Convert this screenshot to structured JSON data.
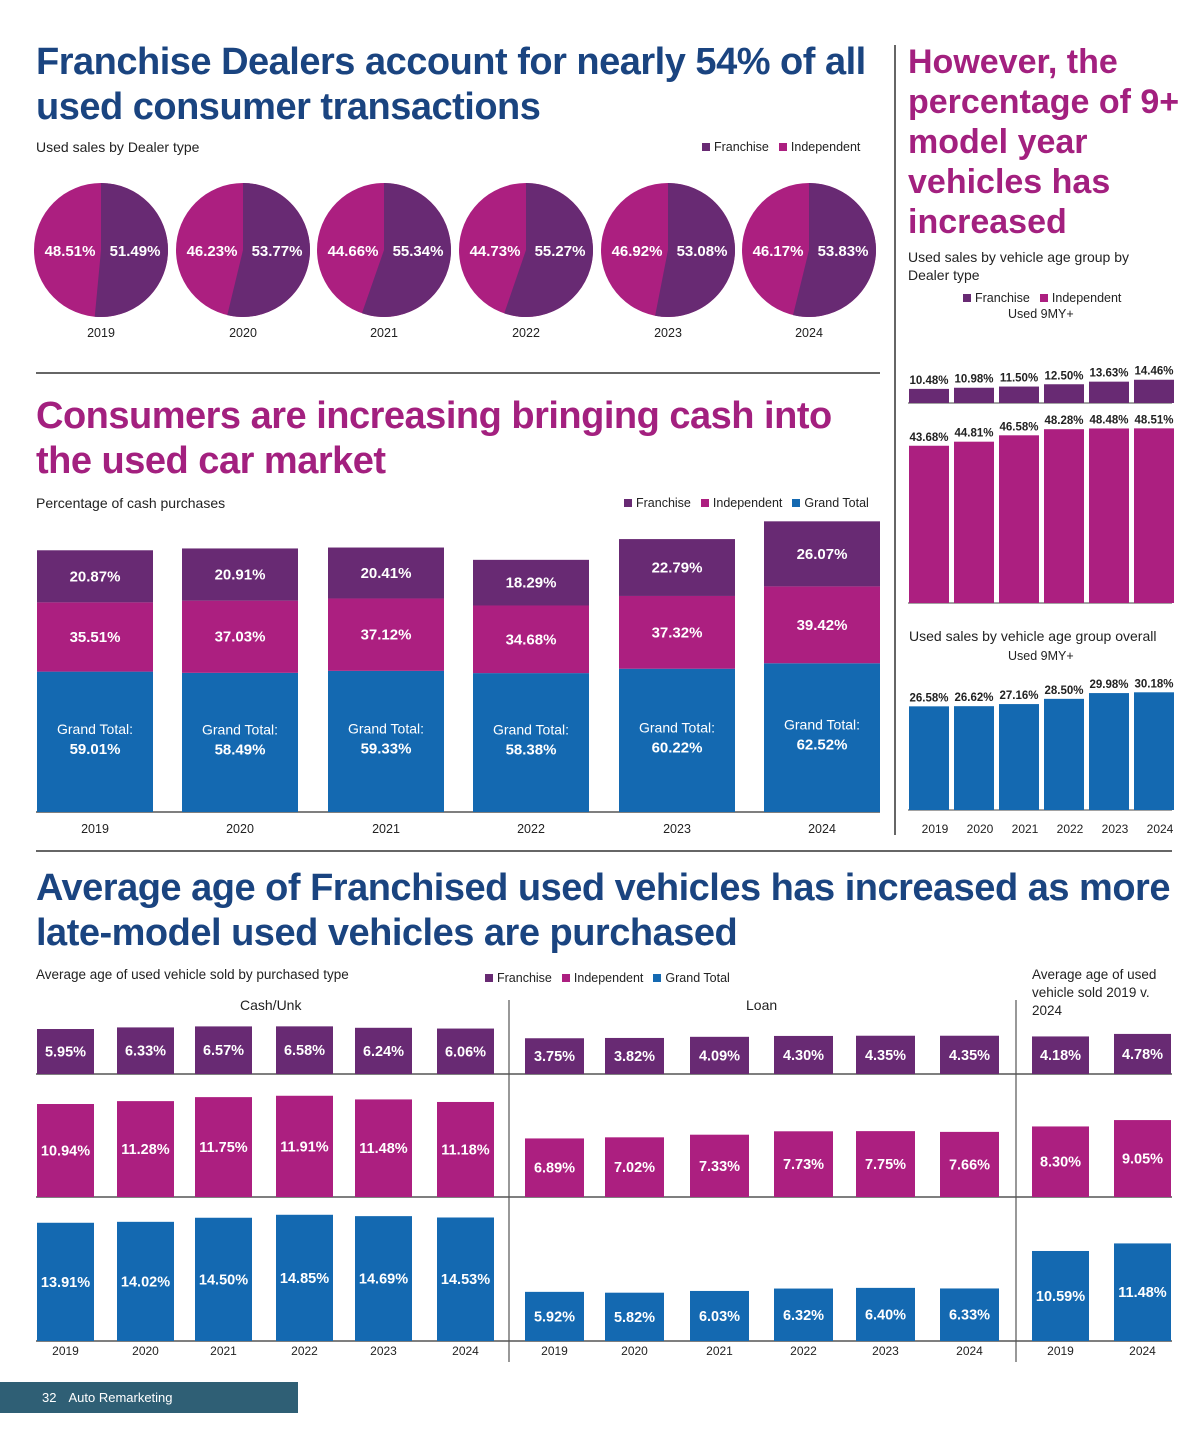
{
  "colors": {
    "franchise": "#682a73",
    "independent": "#ac1f80",
    "grand_total": "#1469b1",
    "headline_blue": "#1a4480",
    "headline_magenta": "#a3207f",
    "footer": "#2f5f75"
  },
  "section1": {
    "title": "Franchise Dealers account for nearly 54% of all used consumer transactions",
    "subtitle": "Used sales by Dealer type",
    "legend": [
      "Franchise",
      "Independent"
    ]
  },
  "section2": {
    "title": "Consumers are increasing bringing cash into the used car market",
    "subtitle": "Percentage of cash purchases",
    "legend": [
      "Franchise",
      "Independent",
      "Grand Total"
    ],
    "grand_total_prefix": "Grand Total:"
  },
  "section3": {
    "title": "However, the percentage of 9+ model year vehicles has increased",
    "subtitle1": "Used sales by vehicle age group by Dealer type",
    "legend": [
      "Franchise",
      "Independent"
    ],
    "series_label": "Used 9MY+",
    "subtitle2": "Used sales by vehicle age group overall",
    "series_label2": "Used 9MY+"
  },
  "section4": {
    "title": "Average age of Franchised used vehicles has increased as more late-model used vehicles are purchased",
    "subtitle": "Average age of used vehicle sold by purchased type",
    "legend": [
      "Franchise",
      "Independent",
      "Grand Total"
    ],
    "panel_cash": "Cash/Unk",
    "panel_loan": "Loan",
    "panel_compare": "Average age of used vehicle sold 2019 v. 2024"
  },
  "footer": {
    "page": "32",
    "publication": "Auto Remarketing"
  },
  "chart_data": [
    {
      "id": "pies",
      "type": "pie",
      "title": "Used sales by Dealer type",
      "categories": [
        "2019",
        "2020",
        "2021",
        "2022",
        "2023",
        "2024"
      ],
      "series": [
        {
          "name": "Franchise",
          "values": [
            51.49,
            53.77,
            55.34,
            55.27,
            53.08,
            53.83
          ],
          "labels": [
            "51.49%",
            "53.77%",
            "55.34%",
            "55.27%",
            "53.08%",
            "53.83%"
          ]
        },
        {
          "name": "Independent",
          "values": [
            48.51,
            46.23,
            44.66,
            44.73,
            46.92,
            46.17
          ],
          "labels": [
            "48.51%",
            "46.23%",
            "44.66%",
            "44.73%",
            "46.92%",
            "46.17%"
          ]
        }
      ],
      "legend": "top-right"
    },
    {
      "id": "cash",
      "type": "bar",
      "title": "Percentage of cash purchases",
      "categories": [
        "2019",
        "2020",
        "2021",
        "2022",
        "2023",
        "2024"
      ],
      "series": [
        {
          "name": "Grand Total",
          "values": [
            59.01,
            58.49,
            59.33,
            58.38,
            60.22,
            62.52
          ],
          "labels": [
            "59.01%",
            "58.49%",
            "59.33%",
            "58.38%",
            "60.22%",
            "62.52%"
          ]
        },
        {
          "name": "Independent",
          "values": [
            35.51,
            37.03,
            37.12,
            34.68,
            37.32,
            39.42
          ],
          "labels": [
            "35.51%",
            "37.03%",
            "37.12%",
            "34.68%",
            "37.32%",
            "39.42%"
          ]
        },
        {
          "name": "Franchise",
          "values": [
            20.87,
            20.91,
            20.41,
            18.29,
            22.79,
            26.07
          ],
          "labels": [
            "20.87%",
            "20.91%",
            "20.41%",
            "18.29%",
            "22.79%",
            "26.07%"
          ]
        }
      ],
      "stacked": true,
      "legend": "top-right"
    },
    {
      "id": "age_dealer",
      "type": "bar",
      "title": "Used sales by vehicle age group by Dealer type",
      "subtitle": "Used 9MY+",
      "categories": [
        "2019",
        "2020",
        "2021",
        "2022",
        "2023",
        "2024"
      ],
      "series": [
        {
          "name": "Franchise",
          "values": [
            10.48,
            10.98,
            11.5,
            12.5,
            13.63,
            14.46
          ],
          "labels": [
            "10.48%",
            "10.98%",
            "11.50%",
            "12.50%",
            "13.63%",
            "14.46%"
          ]
        },
        {
          "name": "Independent",
          "values": [
            43.68,
            44.81,
            46.58,
            48.28,
            48.48,
            48.51
          ],
          "labels": [
            "43.68%",
            "44.81%",
            "46.58%",
            "48.28%",
            "48.48%",
            "48.51%"
          ]
        }
      ]
    },
    {
      "id": "age_overall",
      "type": "bar",
      "title": "Used sales by vehicle age group overall",
      "subtitle": "Used 9MY+",
      "categories": [
        "2019",
        "2020",
        "2021",
        "2022",
        "2023",
        "2024"
      ],
      "series": [
        {
          "name": "Grand Total",
          "values": [
            26.58,
            26.62,
            27.16,
            28.5,
            29.98,
            30.18
          ],
          "labels": [
            "26.58%",
            "26.62%",
            "27.16%",
            "28.50%",
            "29.98%",
            "30.18%"
          ]
        }
      ]
    },
    {
      "id": "avg_age",
      "type": "bar",
      "title": "Average age of used vehicle sold by purchased type",
      "panels": [
        {
          "name": "Cash/Unk",
          "categories": [
            "2019",
            "2020",
            "2021",
            "2022",
            "2023",
            "2024"
          ],
          "series": [
            {
              "name": "Franchise",
              "values": [
                5.95,
                6.33,
                6.57,
                6.58,
                6.24,
                6.06
              ],
              "labels": [
                "5.95%",
                "6.33%",
                "6.57%",
                "6.58%",
                "6.24%",
                "6.06%"
              ]
            },
            {
              "name": "Independent",
              "values": [
                10.94,
                11.28,
                11.75,
                11.91,
                11.48,
                11.18
              ],
              "labels": [
                "10.94%",
                "11.28%",
                "11.75%",
                "11.91%",
                "11.48%",
                "11.18%"
              ]
            },
            {
              "name": "Grand Total",
              "values": [
                13.91,
                14.02,
                14.5,
                14.85,
                14.69,
                14.53
              ],
              "labels": [
                "13.91%",
                "14.02%",
                "14.50%",
                "14.85%",
                "14.69%",
                "14.53%"
              ]
            }
          ]
        },
        {
          "name": "Loan",
          "categories": [
            "2019",
            "2020",
            "2021",
            "2022",
            "2023",
            "2024"
          ],
          "series": [
            {
              "name": "Franchise",
              "values": [
                3.75,
                3.82,
                4.09,
                4.3,
                4.35,
                4.35
              ],
              "labels": [
                "3.75%",
                "3.82%",
                "4.09%",
                "4.30%",
                "4.35%",
                "4.35%"
              ]
            },
            {
              "name": "Independent",
              "values": [
                6.89,
                7.02,
                7.33,
                7.73,
                7.75,
                7.66
              ],
              "labels": [
                "6.89%",
                "7.02%",
                "7.33%",
                "7.73%",
                "7.75%",
                "7.66%"
              ]
            },
            {
              "name": "Grand Total",
              "values": [
                5.92,
                5.82,
                6.03,
                6.32,
                6.4,
                6.33
              ],
              "labels": [
                "5.92%",
                "5.82%",
                "6.03%",
                "6.32%",
                "6.40%",
                "6.33%"
              ]
            }
          ]
        },
        {
          "name": "Average age of used vehicle sold 2019 v. 2024",
          "categories": [
            "2019",
            "2024"
          ],
          "series": [
            {
              "name": "Franchise",
              "values": [
                4.18,
                4.78
              ],
              "labels": [
                "4.18%",
                "4.78%"
              ]
            },
            {
              "name": "Independent",
              "values": [
                8.3,
                9.05
              ],
              "labels": [
                "8.30%",
                "9.05%"
              ]
            },
            {
              "name": "Grand Total",
              "values": [
                10.59,
                11.48
              ],
              "labels": [
                "10.59%",
                "11.48%"
              ]
            }
          ]
        }
      ],
      "legend": "top-center"
    }
  ]
}
